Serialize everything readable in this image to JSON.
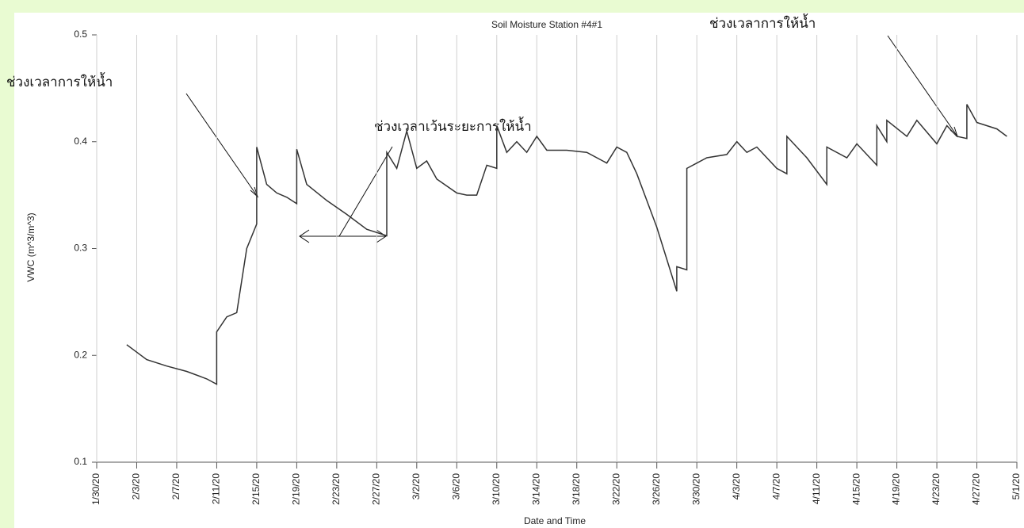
{
  "chart_data": {
    "type": "line",
    "title": "Soil Moisture Station #4#1",
    "x_label": "Date and Time",
    "y_label": "VWC (m^3/m^3)",
    "annotations": [
      "ช่วงเวลาการให้น้ำ",
      "ช่วงเวลาการให้น้ำ",
      "ช่วงเวลาเว้นระยะการให้น้ำ"
    ],
    "xlim": [
      "2020-01-30",
      "2020-05-01"
    ],
    "xticks": [
      {
        "value": "2020-01-30",
        "label": "1/30/20"
      },
      {
        "value": "2020-02-03",
        "label": "2/3/20"
      },
      {
        "value": "2020-02-07",
        "label": "2/7/20"
      },
      {
        "value": "2020-02-11",
        "label": "2/11/20"
      },
      {
        "value": "2020-02-15",
        "label": "2/15/20"
      },
      {
        "value": "2020-02-19",
        "label": "2/19/20"
      },
      {
        "value": "2020-02-23",
        "label": "2/23/20"
      },
      {
        "value": "2020-02-27",
        "label": "2/27/20"
      },
      {
        "value": "2020-03-02",
        "label": "3/2/20"
      },
      {
        "value": "2020-03-06",
        "label": "3/6/20"
      },
      {
        "value": "2020-03-10",
        "label": "3/10/20"
      },
      {
        "value": "2020-03-14",
        "label": "3/14/20"
      },
      {
        "value": "2020-03-18",
        "label": "3/18/20"
      },
      {
        "value": "2020-03-22",
        "label": "3/22/20"
      },
      {
        "value": "2020-03-26",
        "label": "3/26/20"
      },
      {
        "value": "2020-03-30",
        "label": "3/30/20"
      },
      {
        "value": "2020-04-03",
        "label": "4/3/20"
      },
      {
        "value": "2020-04-07",
        "label": "4/7/20"
      },
      {
        "value": "2020-04-11",
        "label": "4/11/20"
      },
      {
        "value": "2020-04-15",
        "label": "4/15/20"
      },
      {
        "value": "2020-04-19",
        "label": "4/19/20"
      },
      {
        "value": "2020-04-23",
        "label": "4/23/20"
      },
      {
        "value": "2020-04-27",
        "label": "4/27/20"
      },
      {
        "value": "2020-05-01",
        "label": "5/1/20"
      }
    ],
    "ylim": [
      0.1,
      0.5
    ],
    "yticks": [
      0.1,
      0.2,
      0.3,
      0.4,
      0.5
    ],
    "grid": true,
    "color": "#333333",
    "x": [
      "2020-02-02",
      "2020-02-04",
      "2020-02-06",
      "2020-02-08",
      "2020-02-10",
      "2020-02-11",
      "2020-02-11",
      "2020-02-12",
      "2020-02-13",
      "2020-02-14",
      "2020-02-15",
      "2020-02-15",
      "2020-02-16",
      "2020-02-17",
      "2020-02-18",
      "2020-02-19",
      "2020-02-19",
      "2020-02-20",
      "2020-02-22",
      "2020-02-24",
      "2020-02-26",
      "2020-02-28",
      "2020-02-28",
      "2020-02-29",
      "2020-03-01",
      "2020-03-02",
      "2020-03-03",
      "2020-03-04",
      "2020-03-06",
      "2020-03-07",
      "2020-03-08",
      "2020-03-09",
      "2020-03-10",
      "2020-03-10",
      "2020-03-11",
      "2020-03-12",
      "2020-03-13",
      "2020-03-14",
      "2020-03-15",
      "2020-03-17",
      "2020-03-19",
      "2020-03-21",
      "2020-03-22",
      "2020-03-23",
      "2020-03-24",
      "2020-03-25",
      "2020-03-26",
      "2020-03-27",
      "2020-03-28",
      "2020-03-28",
      "2020-03-29",
      "2020-03-29",
      "2020-03-30",
      "2020-03-31",
      "2020-04-02",
      "2020-04-03",
      "2020-04-04",
      "2020-04-05",
      "2020-04-07",
      "2020-04-08",
      "2020-04-08",
      "2020-04-10",
      "2020-04-12",
      "2020-04-12",
      "2020-04-14",
      "2020-04-15",
      "2020-04-17",
      "2020-04-17",
      "2020-04-18",
      "2020-04-18",
      "2020-04-20",
      "2020-04-21",
      "2020-04-23",
      "2020-04-24",
      "2020-04-25",
      "2020-04-26",
      "2020-04-26",
      "2020-04-27",
      "2020-04-29",
      "2020-04-30"
    ],
    "values": [
      0.21,
      0.196,
      0.19,
      0.185,
      0.178,
      0.173,
      0.222,
      0.236,
      0.24,
      0.3,
      0.323,
      0.395,
      0.36,
      0.352,
      0.348,
      0.342,
      0.393,
      0.36,
      0.345,
      0.332,
      0.318,
      0.312,
      0.39,
      0.375,
      0.41,
      0.375,
      0.382,
      0.365,
      0.352,
      0.35,
      0.35,
      0.378,
      0.375,
      0.415,
      0.39,
      0.4,
      0.39,
      0.405,
      0.392,
      0.392,
      0.39,
      0.38,
      0.395,
      0.39,
      0.37,
      0.345,
      0.32,
      0.29,
      0.26,
      0.283,
      0.28,
      0.375,
      0.38,
      0.385,
      0.388,
      0.4,
      0.39,
      0.395,
      0.375,
      0.37,
      0.405,
      0.385,
      0.36,
      0.395,
      0.385,
      0.398,
      0.378,
      0.415,
      0.4,
      0.42,
      0.405,
      0.42,
      0.398,
      0.415,
      0.405,
      0.403,
      0.435,
      0.418,
      0.412,
      0.405
    ]
  }
}
